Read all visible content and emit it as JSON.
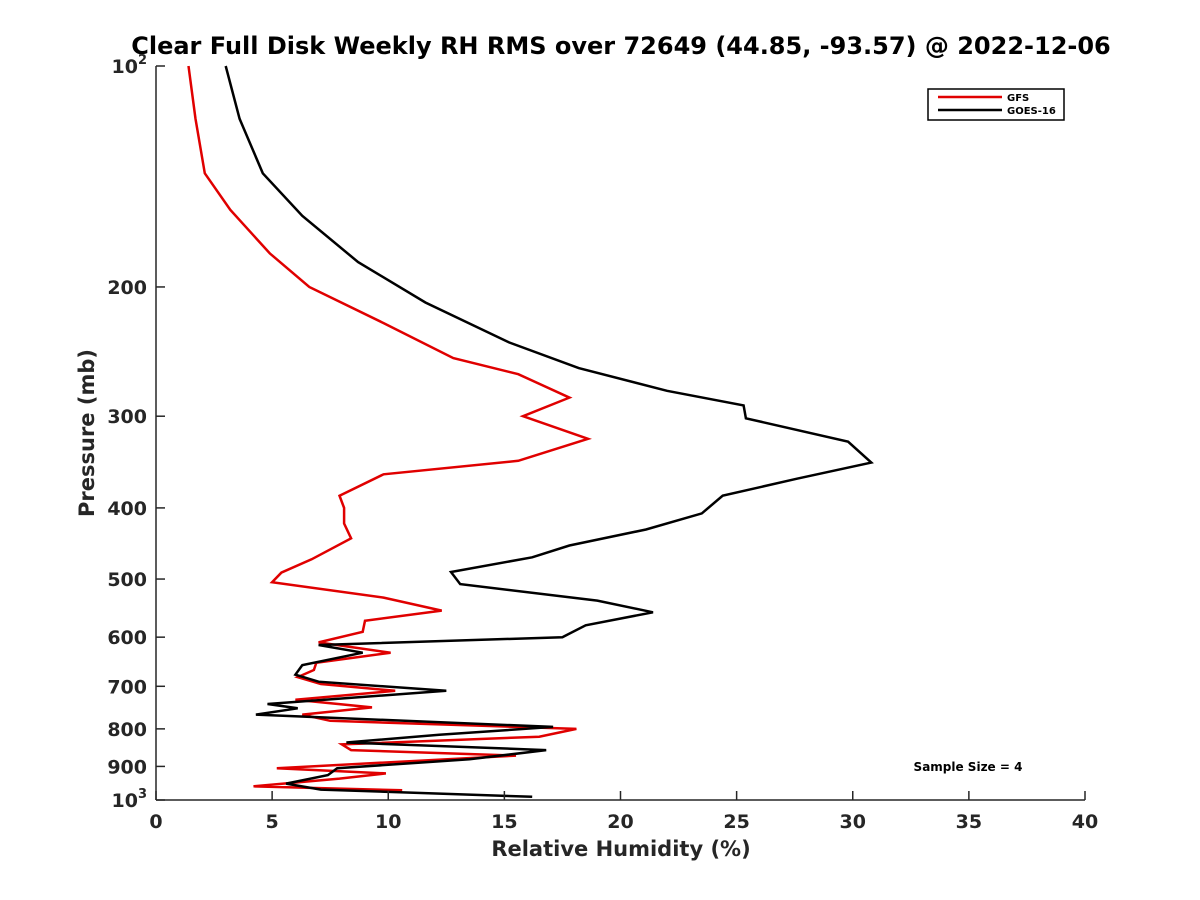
{
  "chart_data": {
    "type": "line",
    "title": "Clear Full Disk Weekly RH RMS over 72649 (44.85, -93.57) @ 2022-12-06",
    "xlabel": "Relative Humidity (%)",
    "ylabel": "Pressure (mb)",
    "xlim": [
      0,
      40
    ],
    "ylim": [
      100,
      1000
    ],
    "yscale": "log",
    "y_reversed": true,
    "grid": false,
    "legend_position": "top-right",
    "xticks": [
      0,
      5,
      10,
      15,
      20,
      25,
      30,
      35,
      40
    ],
    "xtick_labels": [
      "0",
      "5",
      "10",
      "15",
      "20",
      "25",
      "30",
      "35",
      "40"
    ],
    "yticks": [
      100,
      200,
      300,
      400,
      500,
      600,
      700,
      800,
      900,
      1000
    ],
    "ytick_labels": [
      {
        "base": "10",
        "exp": "2"
      },
      {
        "base": "200",
        "exp": ""
      },
      {
        "base": "300",
        "exp": ""
      },
      {
        "base": "400",
        "exp": ""
      },
      {
        "base": "500",
        "exp": ""
      },
      {
        "base": "600",
        "exp": ""
      },
      {
        "base": "700",
        "exp": ""
      },
      {
        "base": "800",
        "exp": ""
      },
      {
        "base": "900",
        "exp": ""
      },
      {
        "base": "10",
        "exp": "3"
      }
    ],
    "annotation": "Sample Size = 4",
    "series": [
      {
        "name": "GFS",
        "color": "#e00000",
        "x": [
          1.4,
          1.7,
          2.1,
          3.2,
          4.9,
          6.6,
          9.8,
          12.8,
          15.6,
          17.8,
          15.8,
          18.6,
          15.6,
          9.8,
          7.9,
          8.1,
          8.1,
          8.4,
          6.7,
          5.4,
          5.0,
          9.8,
          12.3,
          9.0,
          8.9,
          7.0,
          10.1,
          6.9,
          6.8,
          6.1,
          7.1,
          10.3,
          6.0,
          9.3,
          6.3,
          7.5,
          18.1,
          16.5,
          8.0,
          8.4,
          15.5,
          5.2,
          9.9,
          7.9,
          4.2,
          10.6
        ],
        "y": [
          100,
          118,
          140,
          157,
          180,
          200,
          224,
          250,
          263,
          283,
          300,
          322,
          345,
          360,
          385,
          400,
          420,
          440,
          470,
          490,
          505,
          530,
          552,
          570,
          590,
          610,
          630,
          650,
          665,
          680,
          695,
          710,
          730,
          748,
          765,
          780,
          800,
          820,
          840,
          855,
          870,
          905,
          920,
          935,
          958,
          970
        ]
      },
      {
        "name": "GOES-16",
        "color": "#000000",
        "x": [
          3.0,
          3.6,
          4.6,
          6.3,
          8.7,
          11.6,
          15.2,
          18.2,
          22.0,
          25.3,
          25.4,
          29.8,
          30.8,
          27.6,
          24.4,
          23.5,
          21.1,
          17.8,
          16.2,
          12.7,
          13.1,
          19.0,
          21.4,
          18.5,
          17.5,
          7.0,
          8.9,
          6.3,
          6.0,
          7.0,
          12.5,
          4.8,
          6.1,
          4.3,
          17.1,
          12.2,
          8.2,
          16.8,
          13.5,
          7.8,
          7.4,
          5.6,
          7.1,
          16.2
        ],
        "y": [
          100,
          118,
          140,
          160,
          185,
          210,
          238,
          258,
          277,
          290,
          302,
          325,
          347,
          365,
          385,
          407,
          428,
          450,
          467,
          489,
          508,
          535,
          555,
          578,
          600,
          615,
          630,
          655,
          675,
          690,
          710,
          740,
          750,
          765,
          795,
          815,
          835,
          855,
          880,
          905,
          925,
          950,
          968,
          990
        ]
      }
    ]
  }
}
